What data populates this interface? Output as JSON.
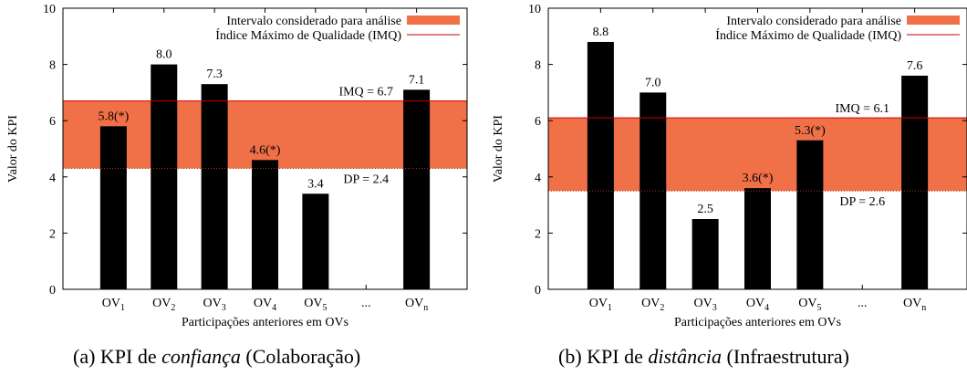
{
  "chart_data": [
    {
      "type": "bar",
      "caption": {
        "prefix": "(a)  KPI de ",
        "emph": "confiança",
        "suffix": " (Colaboração)"
      },
      "categories": [
        {
          "base": "OV",
          "sub": "1"
        },
        {
          "base": "OV",
          "sub": "2"
        },
        {
          "base": "OV",
          "sub": "3"
        },
        {
          "base": "OV",
          "sub": "4"
        },
        {
          "base": "OV",
          "sub": "5"
        },
        {
          "base": "...",
          "sub": ""
        },
        {
          "base": "OV",
          "sub": "n"
        }
      ],
      "values": [
        5.8,
        8.0,
        7.3,
        4.6,
        3.4,
        null,
        7.1
      ],
      "value_labels": [
        "5.8(*)",
        "8.0",
        "7.3",
        "4.6(*)",
        "3.4",
        "",
        "7.1"
      ],
      "xlabel": "Participações anteriores em OVs",
      "ylabel": "Valor do KPI",
      "ylim": [
        0,
        10
      ],
      "yticks": [
        0,
        2,
        4,
        6,
        8,
        10
      ],
      "band": {
        "low": 4.3,
        "high": 6.7,
        "color": "#f07048"
      },
      "imq": {
        "value": 6.7,
        "label": "IMQ = 6.7",
        "color": "#cc0000"
      },
      "dp": {
        "value": 4.3,
        "label": "DP = 2.4"
      },
      "legend": {
        "position": "top-right",
        "band_label": "Intervalo considerado para análise",
        "line_label": "Índice Máximo de Qualidade (IMQ)"
      },
      "bar_color": "#000000"
    },
    {
      "type": "bar",
      "caption": {
        "prefix": "(b)  KPI de ",
        "emph": "distância",
        "suffix": " (Infraestrutura)"
      },
      "categories": [
        {
          "base": "OV",
          "sub": "1"
        },
        {
          "base": "OV",
          "sub": "2"
        },
        {
          "base": "OV",
          "sub": "3"
        },
        {
          "base": "OV",
          "sub": "4"
        },
        {
          "base": "OV",
          "sub": "5"
        },
        {
          "base": "...",
          "sub": ""
        },
        {
          "base": "OV",
          "sub": "n"
        }
      ],
      "values": [
        8.8,
        7.0,
        2.5,
        3.6,
        5.3,
        null,
        7.6
      ],
      "value_labels": [
        "8.8",
        "7.0",
        "2.5",
        "3.6(*)",
        "5.3(*)",
        "",
        "7.6"
      ],
      "xlabel": "Participações anteriores em OVs",
      "ylabel": "Valor do KPI",
      "ylim": [
        0,
        10
      ],
      "yticks": [
        0,
        2,
        4,
        6,
        8,
        10
      ],
      "band": {
        "low": 3.5,
        "high": 6.1,
        "color": "#f07048"
      },
      "imq": {
        "value": 6.1,
        "label": "IMQ = 6.1",
        "color": "#cc0000"
      },
      "dp": {
        "value": 3.5,
        "label": "DP = 2.6"
      },
      "legend": {
        "position": "top-right",
        "band_label": "Intervalo considerado para análise",
        "line_label": "Índice Máximo de Qualidade (IMQ)"
      },
      "bar_color": "#000000"
    }
  ]
}
